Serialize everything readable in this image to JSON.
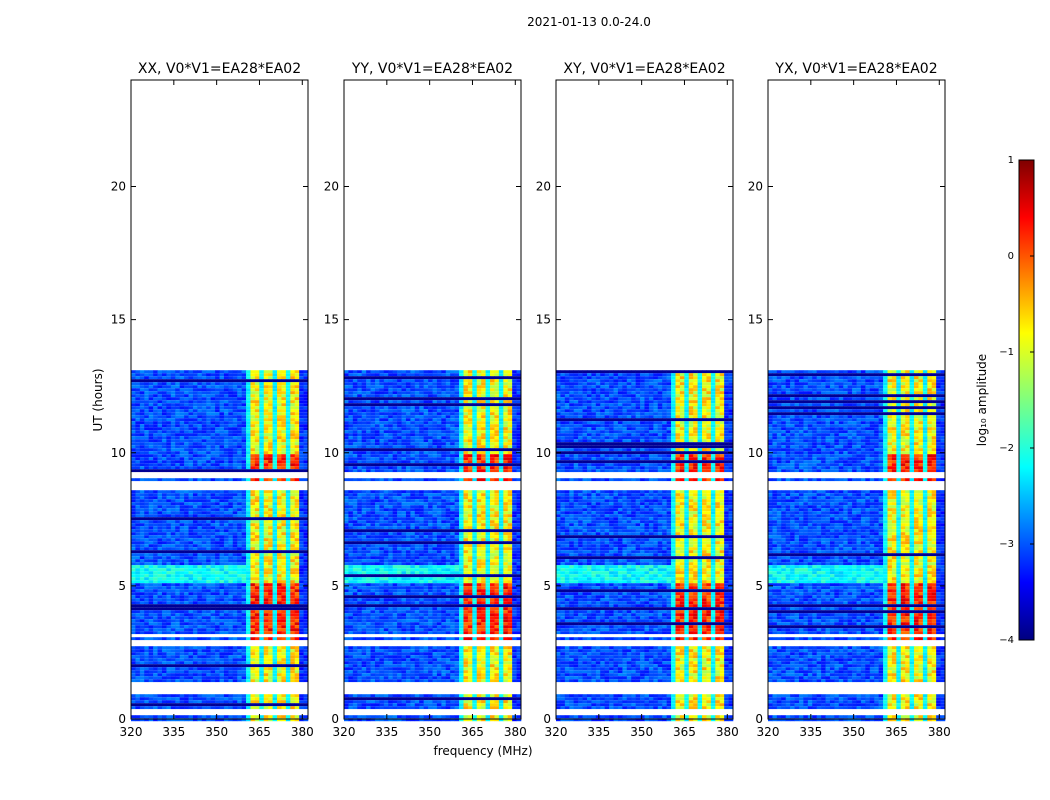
{
  "chart_data": {
    "type": "heatmap",
    "suptitle": "2021-01-13 0.0-24.0",
    "xlabel": "frequency (MHz)",
    "ylabel": "UT (hours)",
    "xlim": [
      320,
      382
    ],
    "ylim": [
      0,
      24
    ],
    "xticks": [
      320,
      335,
      350,
      365,
      380
    ],
    "yticks": [
      0,
      5,
      10,
      15,
      20
    ],
    "data_end_hour": 13.1,
    "rfi_band": {
      "start_mhz": 360,
      "end_mhz": 379
    },
    "panels": [
      {
        "title": "XX, V0*V1=EA28*EA02",
        "band_start_mhz": 360,
        "band_end_mhz": 379
      },
      {
        "title": "YY, V0*V1=EA28*EA02",
        "band_start_mhz": 360,
        "band_end_mhz": 379
      },
      {
        "title": "XY, V0*V1=EA28*EA02",
        "band_start_mhz": 360,
        "band_end_mhz": 379
      },
      {
        "title": "YX, V0*V1=EA28*EA02",
        "band_start_mhz": 360,
        "band_end_mhz": 379
      }
    ],
    "gap_hours": [
      0.3,
      1.1,
      1.3,
      2.9,
      3.2,
      8.7,
      8.9,
      9.2
    ],
    "colorbar": {
      "label": "log₁₀ amplitude",
      "min": -4,
      "max": 1,
      "ticks": [
        {
          "value": 1,
          "label": "1"
        },
        {
          "value": 0,
          "label": "0"
        },
        {
          "value": -1,
          "label": "−1"
        },
        {
          "value": -2,
          "label": "−2"
        },
        {
          "value": -3,
          "label": "−3"
        },
        {
          "value": -4,
          "label": "−4"
        }
      ],
      "colormap": "jet"
    }
  }
}
